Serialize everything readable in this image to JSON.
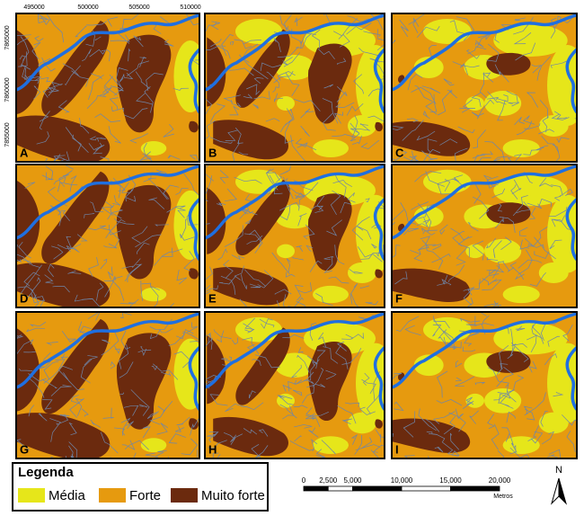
{
  "axes": {
    "x_labels": [
      "495000",
      "500000",
      "505000",
      "510000"
    ],
    "y_labels": [
      "7865000",
      "7860000",
      "7855000"
    ]
  },
  "panels": [
    {
      "label": "A"
    },
    {
      "label": "B"
    },
    {
      "label": "C"
    },
    {
      "label": "D"
    },
    {
      "label": "E"
    },
    {
      "label": "F"
    },
    {
      "label": "G"
    },
    {
      "label": "H"
    },
    {
      "label": "I"
    }
  ],
  "legend": {
    "title": "Legenda",
    "items": [
      {
        "label": "Média",
        "color": "#e6e61a"
      },
      {
        "label": "Forte",
        "color": "#e69a0f"
      },
      {
        "label": "Muito forte",
        "color": "#6b2a0e"
      }
    ]
  },
  "scale_bar": {
    "ticks": [
      {
        "value": 0,
        "label": "0"
      },
      {
        "value": 2500,
        "label": "2,500"
      },
      {
        "value": 5000,
        "label": "5,000"
      },
      {
        "value": 10000,
        "label": "10,000"
      },
      {
        "value": 15000,
        "label": "15,000"
      },
      {
        "value": 20000,
        "label": "20,000"
      }
    ],
    "unit": "Metros"
  },
  "north_arrow": "N"
}
